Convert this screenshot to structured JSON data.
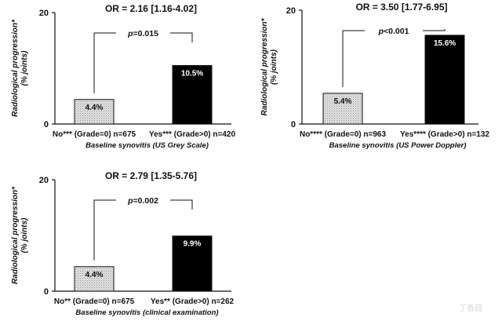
{
  "chart_data": [
    {
      "type": "bar",
      "title": "OR = 2.16 [1.16-4.02]",
      "ylabel": "Radiological progression* (% joints)",
      "ylabel_lines": [
        "Radiological progression*",
        "(% joints)"
      ],
      "xlabel": "Baseline synovitis (US Grey Scale)",
      "categories": [
        "No*** (Grade=0) n=675",
        "Yes*** (Grade>0) n=420"
      ],
      "values": [
        4.4,
        10.5
      ],
      "value_labels": [
        "4.4%",
        "10.5%"
      ],
      "bar_colors": [
        "#d0d0d0",
        "#000000"
      ],
      "bar_label_colors": [
        "#111111",
        "#ffffff"
      ],
      "yticks": [
        0,
        20
      ],
      "ylim": [
        0,
        20
      ],
      "p_value": "p=0.015"
    },
    {
      "type": "bar",
      "title": "OR = 3.50 [1.77-6.95]",
      "ylabel": "Radiological progression* (% joints)",
      "ylabel_lines": [
        "Radiological progression*",
        "(% joints)"
      ],
      "xlabel": "Baseline synovitis (US Power Doppler)",
      "categories": [
        "No**** (Grade=0) n=963",
        "Yes**** (Grade>0) n=132"
      ],
      "values": [
        5.4,
        15.6
      ],
      "value_labels": [
        "5.4%",
        "15.6%"
      ],
      "bar_colors": [
        "#d0d0d0",
        "#000000"
      ],
      "bar_label_colors": [
        "#111111",
        "#ffffff"
      ],
      "yticks": [
        0,
        20
      ],
      "ylim": [
        0,
        20
      ],
      "p_value": "p<0.001"
    },
    {
      "type": "bar",
      "title": "OR = 2.79 [1.35-5.76]",
      "ylabel": "Radiological progression* (% joints)",
      "ylabel_lines": [
        "Radiological progression*",
        "(% joints)"
      ],
      "xlabel": "Baseline synovitis (clinical examination)",
      "categories": [
        "No** (Grade=0) n=675",
        "Yes** (Grade>0) n=262"
      ],
      "values": [
        4.4,
        9.9
      ],
      "value_labels": [
        "4.4%",
        "9.9%"
      ],
      "bar_colors": [
        "#d0d0d0",
        "#000000"
      ],
      "bar_label_colors": [
        "#111111",
        "#ffffff"
      ],
      "yticks": [
        0,
        20
      ],
      "ylim": [
        0,
        20
      ],
      "p_value": "p=0.002"
    }
  ],
  "watermark": "丁香园"
}
